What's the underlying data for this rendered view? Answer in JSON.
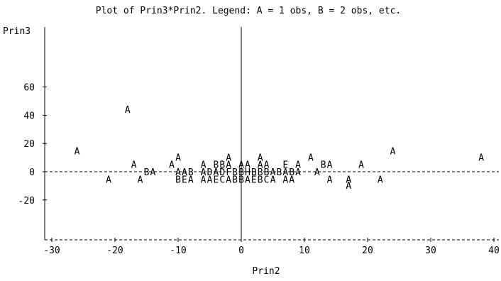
{
  "chart_data": {
    "type": "scatter",
    "title": "Plot of Prin3*Prin2.  Legend: A = 1 obs, B = 2 obs, etc.",
    "xlabel": "Prin2",
    "ylabel": "Prin3",
    "xlim": [
      -31,
      41
    ],
    "ylim": [
      -30,
      62
    ],
    "x_ticks": [
      -30,
      -20,
      -10,
      0,
      10,
      20,
      30,
      40
    ],
    "y_ticks": [
      -20,
      0,
      20,
      40,
      60
    ],
    "reference_lines": {
      "x": 0,
      "y": 0
    },
    "grid": false,
    "legend_placement": "title",
    "points": [
      {
        "x": -18,
        "y": 44.3,
        "symbol": "A"
      },
      {
        "x": -26,
        "y": 14.7,
        "symbol": "A"
      },
      {
        "x": 24,
        "y": 14.7,
        "symbol": "A"
      },
      {
        "x": -10,
        "y": 10.3,
        "symbol": "A"
      },
      {
        "x": -2,
        "y": 10.3,
        "symbol": "A"
      },
      {
        "x": 3,
        "y": 10.3,
        "symbol": "A"
      },
      {
        "x": 11,
        "y": 10.3,
        "symbol": "A"
      },
      {
        "x": 38,
        "y": 10.3,
        "symbol": "A"
      },
      {
        "x": -17,
        "y": 5.2,
        "symbol": "A"
      },
      {
        "x": -11,
        "y": 5.2,
        "symbol": "A"
      },
      {
        "x": -6,
        "y": 5.2,
        "symbol": "A"
      },
      {
        "x": -4,
        "y": 5.2,
        "symbol": "B"
      },
      {
        "x": -3,
        "y": 5.2,
        "symbol": "B"
      },
      {
        "x": -2,
        "y": 5.2,
        "symbol": "A"
      },
      {
        "x": 0,
        "y": 5.2,
        "symbol": "A"
      },
      {
        "x": 1,
        "y": 5.2,
        "symbol": "A"
      },
      {
        "x": 3,
        "y": 5.2,
        "symbol": "A"
      },
      {
        "x": 4,
        "y": 5.2,
        "symbol": "A"
      },
      {
        "x": 7,
        "y": 5.2,
        "symbol": "E"
      },
      {
        "x": 9,
        "y": 5.2,
        "symbol": "A"
      },
      {
        "x": 13,
        "y": 5.2,
        "symbol": "B"
      },
      {
        "x": 14,
        "y": 5.2,
        "symbol": "A"
      },
      {
        "x": 19,
        "y": 5.2,
        "symbol": "A"
      },
      {
        "x": -15,
        "y": 0,
        "symbol": "B"
      },
      {
        "x": -14,
        "y": 0,
        "symbol": "A"
      },
      {
        "x": -10,
        "y": 0,
        "symbol": "A"
      },
      {
        "x": -9,
        "y": 0,
        "symbol": "A"
      },
      {
        "x": -8,
        "y": 0,
        "symbol": "B"
      },
      {
        "x": -6,
        "y": 0,
        "symbol": "A"
      },
      {
        "x": -5,
        "y": 0,
        "symbol": "D"
      },
      {
        "x": -4,
        "y": 0,
        "symbol": "A"
      },
      {
        "x": -3,
        "y": 0,
        "symbol": "D"
      },
      {
        "x": -2,
        "y": 0,
        "symbol": "F"
      },
      {
        "x": -1,
        "y": 0,
        "symbol": "B"
      },
      {
        "x": 0,
        "y": 0,
        "symbol": "B"
      },
      {
        "x": 1,
        "y": 0,
        "symbol": "H"
      },
      {
        "x": 2,
        "y": 0,
        "symbol": "B"
      },
      {
        "x": 3,
        "y": 0,
        "symbol": "B"
      },
      {
        "x": 4,
        "y": 0,
        "symbol": "B"
      },
      {
        "x": 5,
        "y": 0,
        "symbol": "A"
      },
      {
        "x": 6,
        "y": 0,
        "symbol": "B"
      },
      {
        "x": 7,
        "y": 0,
        "symbol": "A"
      },
      {
        "x": 8,
        "y": 0,
        "symbol": "B"
      },
      {
        "x": 9,
        "y": 0,
        "symbol": "A"
      },
      {
        "x": 12,
        "y": 0,
        "symbol": "A"
      },
      {
        "x": -21,
        "y": -5.2,
        "symbol": "A"
      },
      {
        "x": -16,
        "y": -5.2,
        "symbol": "A"
      },
      {
        "x": -10,
        "y": -5.2,
        "symbol": "B"
      },
      {
        "x": -9,
        "y": -5.2,
        "symbol": "E"
      },
      {
        "x": -8,
        "y": -5.2,
        "symbol": "A"
      },
      {
        "x": -6,
        "y": -5.2,
        "symbol": "A"
      },
      {
        "x": -5,
        "y": -5.2,
        "symbol": "A"
      },
      {
        "x": -4,
        "y": -5.2,
        "symbol": "E"
      },
      {
        "x": -3,
        "y": -5.2,
        "symbol": "C"
      },
      {
        "x": -2,
        "y": -5.2,
        "symbol": "A"
      },
      {
        "x": -1,
        "y": -5.2,
        "symbol": "B"
      },
      {
        "x": 0,
        "y": -5.2,
        "symbol": "B"
      },
      {
        "x": 1,
        "y": -5.2,
        "symbol": "A"
      },
      {
        "x": 2,
        "y": -5.2,
        "symbol": "E"
      },
      {
        "x": 3,
        "y": -5.2,
        "symbol": "B"
      },
      {
        "x": 4,
        "y": -5.2,
        "symbol": "C"
      },
      {
        "x": 5,
        "y": -5.2,
        "symbol": "A"
      },
      {
        "x": 7,
        "y": -5.2,
        "symbol": "A"
      },
      {
        "x": 8,
        "y": -5.2,
        "symbol": "A"
      },
      {
        "x": 14,
        "y": -5.2,
        "symbol": "A"
      },
      {
        "x": 17,
        "y": -5.2,
        "symbol": "A"
      },
      {
        "x": 22,
        "y": -5.2,
        "symbol": "A"
      },
      {
        "x": 17,
        "y": -9.6,
        "symbol": "A"
      }
    ]
  }
}
